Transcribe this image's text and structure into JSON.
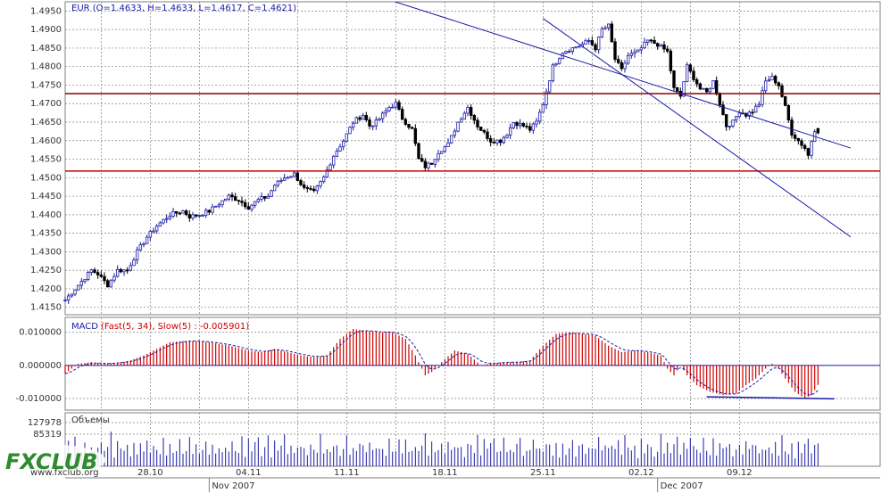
{
  "watermark": {
    "brand": "FXCLUB",
    "url": "www.fxclub.org"
  },
  "colors": {
    "background": "#ffffff",
    "frame": "#808080",
    "grid": "#808080",
    "candle_up": "#1a1aa6",
    "candle_down": "#000000",
    "channel": "#1a1aa6",
    "resistance": "#8b0000",
    "support": "#cc0000",
    "macd_hist": "#cc0000",
    "macd_signal": "#1a1aa6",
    "volume": "#1a1aa6",
    "brand_green": "#2e8b2e"
  },
  "chart_data": [
    {
      "type": "candlestick",
      "title": "EUR (O=1.4633, H=1.4633, L=1.4617, C=1.4621)",
      "symbol": "EUR",
      "last": {
        "O": 1.4633,
        "H": 1.4633,
        "L": 1.4617,
        "C": 1.4621
      },
      "ylim": [
        1.413,
        1.4975
      ],
      "yticks": [
        1.415,
        1.42,
        1.425,
        1.43,
        1.435,
        1.44,
        1.445,
        1.45,
        1.455,
        1.46,
        1.465,
        1.47,
        1.475,
        1.48,
        1.485,
        1.49,
        1.495
      ],
      "ytick_labels": [
        "1.4150",
        "1.4200",
        "1.4250",
        "1.4300",
        "1.4350",
        "1.4400",
        "1.4450",
        "1.4500",
        "1.4550",
        "1.4600",
        "1.4650",
        "1.4700",
        "1.4750",
        "1.4800",
        "1.4850",
        "1.4900",
        "1.4950"
      ],
      "xlim": [
        0,
        230
      ],
      "close_anchors": [
        [
          0,
          1.417
        ],
        [
          4,
          1.421
        ],
        [
          8,
          1.425
        ],
        [
          10,
          1.424
        ],
        [
          13,
          1.421
        ],
        [
          16,
          1.425
        ],
        [
          19,
          1.425
        ],
        [
          22,
          1.43
        ],
        [
          25,
          1.434
        ],
        [
          28,
          1.437
        ],
        [
          32,
          1.44
        ],
        [
          36,
          1.441
        ],
        [
          38,
          1.4395
        ],
        [
          41,
          1.44
        ],
        [
          44,
          1.441
        ],
        [
          47,
          1.443
        ],
        [
          50,
          1.445
        ],
        [
          53,
          1.444
        ],
        [
          56,
          1.442
        ],
        [
          59,
          1.444
        ],
        [
          62,
          1.445
        ],
        [
          64,
          1.448
        ],
        [
          67,
          1.45
        ],
        [
          70,
          1.451
        ],
        [
          73,
          1.447
        ],
        [
          76,
          1.446
        ],
        [
          79,
          1.45
        ],
        [
          82,
          1.456
        ],
        [
          85,
          1.46
        ],
        [
          88,
          1.465
        ],
        [
          91,
          1.467
        ],
        [
          93,
          1.464
        ],
        [
          95,
          1.465
        ],
        [
          97,
          1.467
        ],
        [
          99,
          1.469
        ],
        [
          101,
          1.47
        ],
        [
          103,
          1.466
        ],
        [
          106,
          1.463
        ],
        [
          108,
          1.455
        ],
        [
          110,
          1.453
        ],
        [
          112,
          1.454
        ],
        [
          114,
          1.457
        ],
        [
          117,
          1.459
        ],
        [
          120,
          1.465
        ],
        [
          123,
          1.469
        ],
        [
          126,
          1.464
        ],
        [
          128,
          1.462
        ],
        [
          130,
          1.46
        ],
        [
          133,
          1.46
        ],
        [
          135,
          1.462
        ],
        [
          137,
          1.465
        ],
        [
          140,
          1.464
        ],
        [
          142,
          1.463
        ],
        [
          144,
          1.465
        ],
        [
          146,
          1.47
        ],
        [
          149,
          1.48
        ],
        [
          152,
          1.484
        ],
        [
          155,
          1.485
        ],
        [
          158,
          1.486
        ],
        [
          160,
          1.487
        ],
        [
          162,
          1.485
        ],
        [
          164,
          1.49
        ],
        [
          166,
          1.491
        ],
        [
          168,
          1.482
        ],
        [
          170,
          1.479
        ],
        [
          172,
          1.483
        ],
        [
          175,
          1.484
        ],
        [
          178,
          1.487
        ],
        [
          181,
          1.486
        ],
        [
          184,
          1.484
        ],
        [
          186,
          1.474
        ],
        [
          188,
          1.472
        ],
        [
          190,
          1.48
        ],
        [
          192,
          1.477
        ],
        [
          194,
          1.474
        ],
        [
          196,
          1.473
        ],
        [
          198,
          1.476
        ],
        [
          200,
          1.47
        ],
        [
          202,
          1.464
        ],
        [
          204,
          1.465
        ],
        [
          206,
          1.468
        ],
        [
          208,
          1.467
        ],
        [
          210,
          1.468
        ],
        [
          212,
          1.47
        ],
        [
          214,
          1.476
        ],
        [
          216,
          1.477
        ],
        [
          218,
          1.475
        ],
        [
          220,
          1.469
        ],
        [
          222,
          1.462
        ],
        [
          224,
          1.46
        ],
        [
          226,
          1.458
        ],
        [
          227,
          1.456
        ],
        [
          228,
          1.46
        ],
        [
          229,
          1.463
        ],
        [
          230,
          1.4621
        ]
      ],
      "horizontal_lines": [
        {
          "name": "resistance",
          "value": 1.4727
        },
        {
          "name": "support",
          "value": 1.4518
        }
      ],
      "channel_lines": [
        {
          "name": "upper",
          "x1": 92,
          "y1": 1.5,
          "x2": 240,
          "y2": 1.458
        },
        {
          "name": "lower",
          "x1": 146,
          "y1": 1.493,
          "x2": 240,
          "y2": 1.434
        }
      ]
    },
    {
      "type": "histogram",
      "title": "MACD (Fast(5, 34), Slow(5) : -0.005901)",
      "label": "MACD",
      "params": "(Fast(5, 34), Slow(5) : -0.005901)",
      "ylim": [
        -0.0135,
        0.0145
      ],
      "yticks": [
        0.01,
        0.0,
        -0.01
      ],
      "ytick_labels": [
        "0.010000",
        "0.000000",
        "-0.010000"
      ],
      "hist_anchors": [
        [
          0,
          -0.0025
        ],
        [
          4,
          0.0005
        ],
        [
          8,
          0.001
        ],
        [
          12,
          0.0005
        ],
        [
          16,
          0.0008
        ],
        [
          20,
          0.0015
        ],
        [
          24,
          0.003
        ],
        [
          28,
          0.005
        ],
        [
          32,
          0.007
        ],
        [
          38,
          0.0075
        ],
        [
          44,
          0.007
        ],
        [
          50,
          0.006
        ],
        [
          56,
          0.0045
        ],
        [
          60,
          0.004
        ],
        [
          64,
          0.005
        ],
        [
          68,
          0.004
        ],
        [
          72,
          0.003
        ],
        [
          76,
          0.0025
        ],
        [
          80,
          0.003
        ],
        [
          84,
          0.008
        ],
        [
          88,
          0.011
        ],
        [
          92,
          0.0105
        ],
        [
          96,
          0.01
        ],
        [
          100,
          0.01
        ],
        [
          104,
          0.008
        ],
        [
          107,
          0.003
        ],
        [
          110,
          -0.003
        ],
        [
          112,
          -0.002
        ],
        [
          115,
          0.001
        ],
        [
          119,
          0.0045
        ],
        [
          123,
          0.0035
        ],
        [
          127,
          0.0
        ],
        [
          130,
          0.0005
        ],
        [
          134,
          0.001
        ],
        [
          138,
          0.001
        ],
        [
          142,
          0.0015
        ],
        [
          146,
          0.006
        ],
        [
          150,
          0.0095
        ],
        [
          154,
          0.01
        ],
        [
          158,
          0.0095
        ],
        [
          162,
          0.009
        ],
        [
          166,
          0.006
        ],
        [
          170,
          0.004
        ],
        [
          174,
          0.0045
        ],
        [
          178,
          0.004
        ],
        [
          182,
          0.003
        ],
        [
          184,
          -0.001
        ],
        [
          186,
          -0.003
        ],
        [
          188,
          0.0
        ],
        [
          190,
          -0.003
        ],
        [
          193,
          -0.006
        ],
        [
          197,
          -0.008
        ],
        [
          201,
          -0.009
        ],
        [
          205,
          -0.0085
        ],
        [
          208,
          -0.006
        ],
        [
          211,
          -0.004
        ],
        [
          214,
          -0.001
        ],
        [
          216,
          0.0005
        ],
        [
          218,
          -0.001
        ],
        [
          220,
          -0.004
        ],
        [
          223,
          -0.008
        ],
        [
          226,
          -0.01
        ],
        [
          228,
          -0.009
        ],
        [
          230,
          -0.0059
        ]
      ],
      "trend_line": {
        "x1": 196,
        "y1": -0.0095,
        "x2": 235,
        "y2": -0.0101
      },
      "zero_line": 0.0
    },
    {
      "type": "bar",
      "title": "Объемы",
      "label": "Объемы",
      "ylim": [
        0,
        127978
      ],
      "ytick_labels": [
        "127978",
        "85319"
      ],
      "volume_pattern": [
        55,
        70,
        40,
        85,
        60,
        45,
        90,
        35,
        75,
        50,
        65,
        80,
        42,
        58,
        95,
        38,
        72,
        48,
        62,
        88,
        44,
        68,
        52,
        78
      ]
    }
  ],
  "x_axis": {
    "labels": [
      {
        "x": 26,
        "text": "28.10"
      },
      {
        "x": 56,
        "text": "04.11"
      },
      {
        "x": 86,
        "text": "11.11"
      },
      {
        "x": 116,
        "text": "18.11"
      },
      {
        "x": 146,
        "text": "25.11"
      },
      {
        "x": 176,
        "text": "02.12"
      },
      {
        "x": 206,
        "text": "09.12"
      }
    ],
    "months": [
      {
        "x": 44,
        "text": "Nov 2007"
      },
      {
        "x": 181,
        "text": "Dec 2007"
      }
    ]
  }
}
